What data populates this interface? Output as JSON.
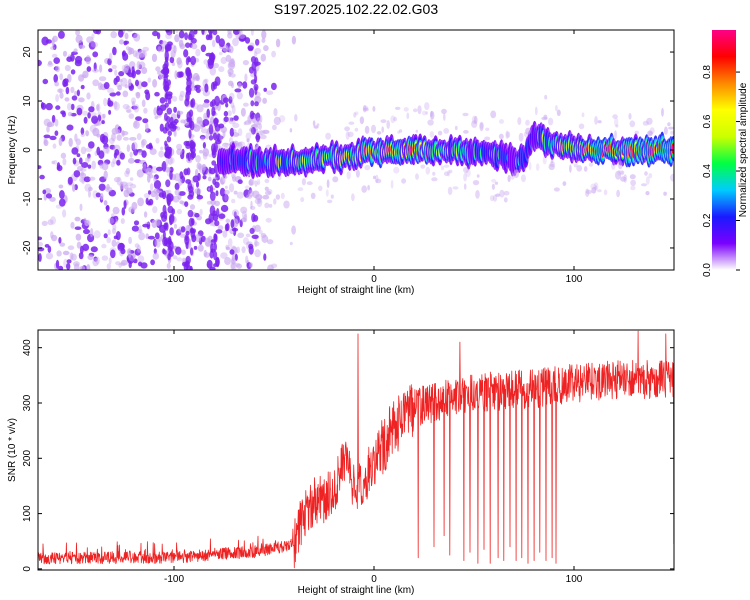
{
  "figure": {
    "title": "S197.2025.102.22.02.G03"
  },
  "colors": {
    "frame": "#000000",
    "snr_line": "#ee2222",
    "noise_purple": "#7a22ee",
    "noise_lavender": "#c9a7f0",
    "colormap": [
      "#ffffff",
      "#7a00ff",
      "#1a1aff",
      "#00ccff",
      "#00ff44",
      "#ccff00",
      "#ffff00",
      "#ff8800",
      "#ff0000",
      "#ff0088"
    ]
  },
  "chart_data": [
    {
      "id": "spectrogram",
      "type": "heatmap",
      "title": "S197.2025.102.22.02.G03",
      "xlabel": "Height of straight line (km)",
      "ylabel": "Frequency (Hz)",
      "xlim": [
        -168,
        150
      ],
      "ylim": [
        -24.5,
        24.5
      ],
      "xticks": [
        -100,
        0,
        100
      ],
      "yticks": [
        -20,
        -10,
        0,
        10,
        20
      ],
      "colorbar": {
        "label": "Normalized spectral amplitude",
        "range": [
          0,
          0.97
        ],
        "ticks": [
          0.0,
          0.2,
          0.4,
          0.6,
          0.8
        ],
        "colormap": "rainbow (white-purple-blue-cyan-green-yellow-red-magenta)"
      },
      "noise_region_x": [
        -168,
        -50
      ],
      "signal": {
        "center_frequency_hz": 0,
        "x_range": [
          -77,
          150
        ],
        "trend": [
          {
            "x": -77,
            "freq": -2.0,
            "amp": 0.45
          },
          {
            "x": -50,
            "freq": -2.5,
            "amp": 0.6
          },
          {
            "x": -30,
            "freq": -2.0,
            "amp": 0.7
          },
          {
            "x": -10,
            "freq": -1.0,
            "amp": 0.75
          },
          {
            "x": 0,
            "freq": 0.0,
            "amp": 0.85
          },
          {
            "x": 20,
            "freq": 0.0,
            "amp": 0.9
          },
          {
            "x": 40,
            "freq": 0.0,
            "amp": 0.6
          },
          {
            "x": 60,
            "freq": -1.0,
            "amp": 0.6
          },
          {
            "x": 75,
            "freq": -2.0,
            "amp": 0.45
          },
          {
            "x": 80,
            "freq": 3.5,
            "amp": 0.5
          },
          {
            "x": 90,
            "freq": 1.0,
            "amp": 0.7
          },
          {
            "x": 110,
            "freq": 0.0,
            "amp": 0.95
          },
          {
            "x": 130,
            "freq": 0.0,
            "amp": 0.95
          },
          {
            "x": 150,
            "freq": 0.0,
            "amp": 0.9
          }
        ]
      }
    },
    {
      "id": "snr",
      "type": "line",
      "xlabel": "Height of straight line (km)",
      "ylabel": "SNR (10 * v/v)",
      "xlim": [
        -168,
        150
      ],
      "ylim": [
        -2,
        432
      ],
      "xticks": [
        -100,
        0,
        100
      ],
      "yticks": [
        0,
        100,
        200,
        300,
        400
      ],
      "grid": false,
      "series": [
        {
          "envelope": [
            {
              "x": -168,
              "y": 20
            },
            {
              "x": -100,
              "y": 22
            },
            {
              "x": -60,
              "y": 32
            },
            {
              "x": -40,
              "y": 45
            },
            {
              "x": -37,
              "y": 85
            },
            {
              "x": -30,
              "y": 125
            },
            {
              "x": -20,
              "y": 140
            },
            {
              "x": -15,
              "y": 210
            },
            {
              "x": -10,
              "y": 150
            },
            {
              "x": -5,
              "y": 160
            },
            {
              "x": 0,
              "y": 200
            },
            {
              "x": 10,
              "y": 260
            },
            {
              "x": 20,
              "y": 295
            },
            {
              "x": 40,
              "y": 315
            },
            {
              "x": 60,
              "y": 325
            },
            {
              "x": 80,
              "y": 330
            },
            {
              "x": 100,
              "y": 340
            },
            {
              "x": 120,
              "y": 345
            },
            {
              "x": 150,
              "y": 345
            }
          ],
          "peaks": [
            {
              "x": -8,
              "y": 425
            },
            {
              "x": 43,
              "y": 410
            },
            {
              "x": 48,
              "y": 428
            },
            {
              "x": 132,
              "y": 430
            },
            {
              "x": 146,
              "y": 425
            }
          ],
          "dropouts": [
            {
              "x": 22,
              "y": 20
            },
            {
              "x": 30,
              "y": 40
            },
            {
              "x": 35,
              "y": 60
            },
            {
              "x": 38,
              "y": 25
            },
            {
              "x": 45,
              "y": 15
            },
            {
              "x": 48,
              "y": 30
            },
            {
              "x": 52,
              "y": 10
            },
            {
              "x": 55,
              "y": 35
            },
            {
              "x": 58,
              "y": 10
            },
            {
              "x": 62,
              "y": 20
            },
            {
              "x": 65,
              "y": 15
            },
            {
              "x": 68,
              "y": 40
            },
            {
              "x": 71,
              "y": 15
            },
            {
              "x": 74,
              "y": 20
            },
            {
              "x": 77,
              "y": 10
            },
            {
              "x": 80,
              "y": 15
            },
            {
              "x": 83,
              "y": 30
            },
            {
              "x": 86,
              "y": 15
            },
            {
              "x": 89,
              "y": 20
            },
            {
              "x": 91,
              "y": 10
            },
            {
              "x": 150,
              "y": 45
            }
          ]
        }
      ]
    }
  ]
}
